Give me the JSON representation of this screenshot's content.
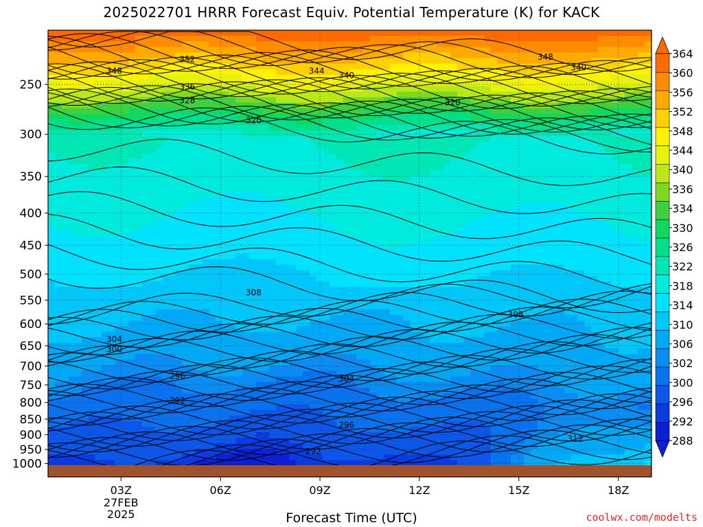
{
  "chart_data": {
    "type": "contour",
    "title": "2025022701 HRRR Forecast Equiv. Potential Temperature (K) for KACK",
    "xlabel": "Forecast Time (UTC)",
    "ylabel": "",
    "x_ticks": [
      {
        "hour": 3,
        "label": "03Z",
        "sublabels": [
          "27FEB",
          "2025"
        ]
      },
      {
        "hour": 6,
        "label": "06Z",
        "sublabels": []
      },
      {
        "hour": 9,
        "label": "09Z",
        "sublabels": []
      },
      {
        "hour": 12,
        "label": "12Z",
        "sublabels": []
      },
      {
        "hour": 15,
        "label": "15Z",
        "sublabels": []
      },
      {
        "hour": 18,
        "label": "18Z",
        "sublabels": []
      }
    ],
    "xlim": [
      0.8,
      19
    ],
    "y_axis": {
      "scale": "log-pressure",
      "inverted": true,
      "ylim_hPa": [
        1050,
        205
      ],
      "ticks": [
        250,
        300,
        350,
        400,
        450,
        500,
        550,
        600,
        650,
        700,
        750,
        800,
        850,
        900,
        950,
        1000
      ]
    },
    "grid": true,
    "colorbar": {
      "position": "right",
      "unit": "K",
      "levels": [
        288,
        290,
        292,
        296,
        300,
        302,
        306,
        310,
        314,
        318,
        322,
        326,
        330,
        334,
        336,
        340,
        344,
        348,
        352,
        356,
        360,
        364
      ],
      "labels": [
        "364",
        "360",
        "356",
        "352",
        "348",
        "344",
        "340",
        "336",
        "334",
        "330",
        "326",
        "322",
        "318",
        "314",
        "310",
        "306",
        "302",
        "300",
        "296",
        "292",
        "288"
      ],
      "colors": [
        "#0a1fd6",
        "#0a3ae0",
        "#0c56ea",
        "#0a72ee",
        "#0b8cf2",
        "#00a8f5",
        "#00c6fa",
        "#00e2ff",
        "#00eadd",
        "#00e6b4",
        "#00e08c",
        "#10d860",
        "#3fd040",
        "#7ed820",
        "#b8e818",
        "#e6f20e",
        "#fff200",
        "#ffd000",
        "#ffaa00",
        "#ff8c00",
        "#ff6a00"
      ]
    },
    "contour_labels": [
      {
        "text": "352",
        "hour": 5.0,
        "hPa": 228
      },
      {
        "text": "348",
        "hour": 2.8,
        "hPa": 238
      },
      {
        "text": "344",
        "hour": 8.9,
        "hPa": 238
      },
      {
        "text": "340",
        "hour": 9.8,
        "hPa": 242
      },
      {
        "text": "348",
        "hour": 15.8,
        "hPa": 226
      },
      {
        "text": "340",
        "hour": 16.8,
        "hPa": 235
      },
      {
        "text": "336",
        "hour": 5.0,
        "hPa": 252
      },
      {
        "text": "328",
        "hour": 5.0,
        "hPa": 265
      },
      {
        "text": "320",
        "hour": 13.0,
        "hPa": 267
      },
      {
        "text": "320",
        "hour": 7.0,
        "hPa": 285
      },
      {
        "text": "308",
        "hour": 7.0,
        "hPa": 535
      },
      {
        "text": "308",
        "hour": 14.9,
        "hPa": 580
      },
      {
        "text": "304",
        "hour": 2.8,
        "hPa": 635
      },
      {
        "text": "300",
        "hour": 2.8,
        "hPa": 658
      },
      {
        "text": "296",
        "hour": 4.7,
        "hPa": 726
      },
      {
        "text": "304",
        "hour": 9.8,
        "hPa": 733
      },
      {
        "text": "292",
        "hour": 4.7,
        "hPa": 795
      },
      {
        "text": "296",
        "hour": 9.8,
        "hPa": 869
      },
      {
        "text": "292",
        "hour": 8.8,
        "hPa": 957
      },
      {
        "text": "312",
        "hour": 16.7,
        "hPa": 913
      }
    ]
  },
  "credit": "coolwx.com/modelts"
}
